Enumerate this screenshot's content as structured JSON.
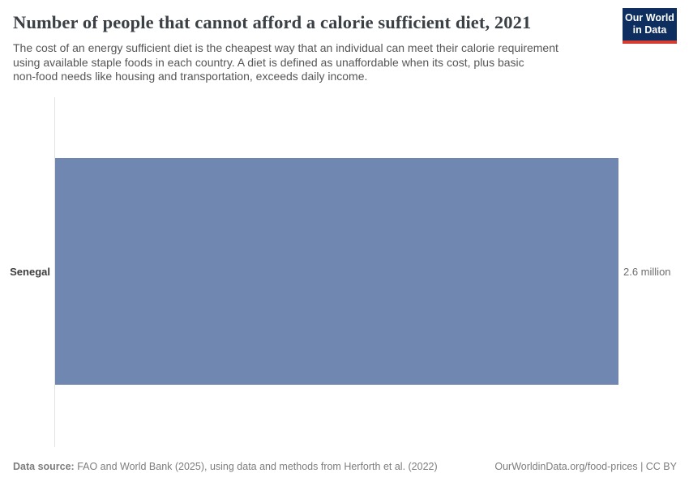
{
  "header": {
    "title": "Number of people that cannot afford a calorie sufficient diet, 2021",
    "subtitle_lines": [
      "The cost of an energy sufficient diet is the cheapest way that an individual can meet their calorie requirement",
      "using available staple foods in each country. A diet is defined as unaffordable when its cost, plus basic",
      "non-food needs like housing and transportation, exceeds daily income."
    ],
    "logo": {
      "line1": "Our World",
      "line2": "in Data"
    }
  },
  "chart_data": {
    "type": "bar",
    "orientation": "horizontal",
    "title": "Number of people that cannot afford a calorie sufficient diet, 2021",
    "categories": [
      "Senegal"
    ],
    "values": [
      2.6
    ],
    "unit": "million",
    "value_labels": [
      "2.6 million"
    ],
    "xlim": [
      0,
      2.6
    ],
    "grid": false,
    "legend": "none",
    "bar_color": "#6f87b1"
  },
  "footer": {
    "source_label": "Data source:",
    "source_text": " FAO and World Bank (2025), using data and methods from Herforth et al. (2022)",
    "link_text": "OurWorldinData.org/food-prices | CC BY"
  },
  "colors": {
    "bar": "#6f87b1",
    "logo_background": "#0d2e5e",
    "logo_underline": "#d73c32",
    "title_text": "#3b4045",
    "subtitle_text": "#565656",
    "axis_line": "#e2e2e2"
  }
}
